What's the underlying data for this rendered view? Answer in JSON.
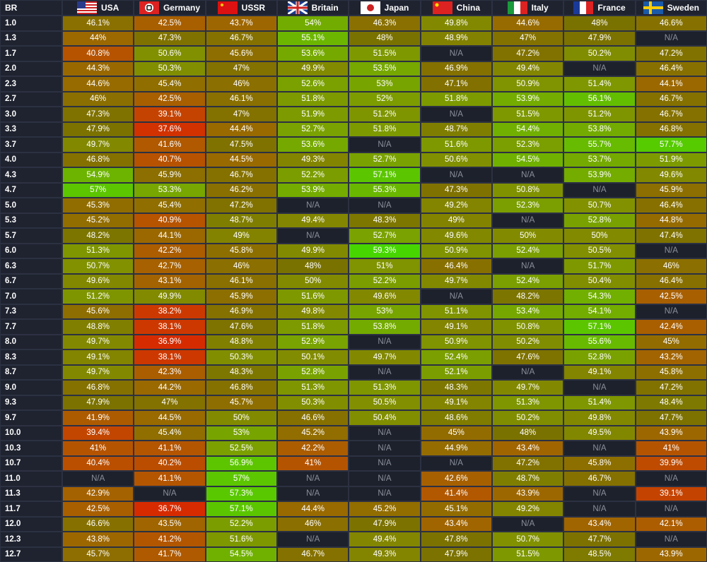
{
  "table": {
    "header": [
      "BR",
      "USA",
      "Germany",
      "USSR",
      "Britain",
      "Japan",
      "China",
      "Italy",
      "France",
      "Sweden"
    ],
    "rows": [
      [
        "1.0",
        "46.1%",
        "42.5%",
        "43.7%",
        "54%",
        "46.3%",
        "49.8%",
        "44.6%",
        "48%",
        "46.6%"
      ],
      [
        "1.3",
        "44%",
        "47.3%",
        "46.7%",
        "55.1%",
        "48%",
        "48.9%",
        "47%",
        "47.9%",
        "N/A"
      ],
      [
        "1.7",
        "40.8%",
        "50.6%",
        "45.6%",
        "53.6%",
        "51.5%",
        "N/A",
        "47.2%",
        "50.2%",
        "47.2%"
      ],
      [
        "2.0",
        "44.3%",
        "50.3%",
        "47%",
        "49.9%",
        "53.5%",
        "46.9%",
        "49.4%",
        "N/A",
        "46.4%"
      ],
      [
        "2.3",
        "44.6%",
        "45.4%",
        "46%",
        "52.6%",
        "53%",
        "47.1%",
        "50.9%",
        "51.4%",
        "44.1%"
      ],
      [
        "2.7",
        "46%",
        "42.5%",
        "46.1%",
        "51.8%",
        "52%",
        "51.8%",
        "53.9%",
        "56.1%",
        "46.7%"
      ],
      [
        "3.0",
        "47.3%",
        "39.1%",
        "47%",
        "51.9%",
        "51.2%",
        "N/A",
        "51.5%",
        "51.2%",
        "46.7%"
      ],
      [
        "3.3",
        "47.9%",
        "37.6%",
        "44.4%",
        "52.7%",
        "51.8%",
        "48.7%",
        "54.4%",
        "53.8%",
        "46.8%"
      ],
      [
        "3.7",
        "49.7%",
        "41.6%",
        "47.5%",
        "53.6%",
        "N/A",
        "51.6%",
        "52.3%",
        "55.7%",
        "57.7%"
      ],
      [
        "4.0",
        "46.8%",
        "40.7%",
        "44.5%",
        "49.3%",
        "52.7%",
        "50.6%",
        "54.5%",
        "53.7%",
        "51.9%"
      ],
      [
        "4.3",
        "54.9%",
        "45.9%",
        "46.7%",
        "52.2%",
        "57.1%",
        "N/A",
        "N/A",
        "53.9%",
        "49.6%"
      ],
      [
        "4.7",
        "57%",
        "53.3%",
        "46.2%",
        "53.9%",
        "55.3%",
        "47.3%",
        "50.8%",
        "N/A",
        "45.9%"
      ],
      [
        "5.0",
        "45.3%",
        "45.4%",
        "47.2%",
        "N/A",
        "N/A",
        "49.2%",
        "52.3%",
        "50.7%",
        "46.4%"
      ],
      [
        "5.3",
        "45.2%",
        "40.9%",
        "48.7%",
        "49.4%",
        "48.3%",
        "49%",
        "N/A",
        "52.8%",
        "44.8%"
      ],
      [
        "5.7",
        "48.2%",
        "44.1%",
        "49%",
        "N/A",
        "52.7%",
        "49.6%",
        "50%",
        "50%",
        "47.4%"
      ],
      [
        "6.0",
        "51.3%",
        "42.2%",
        "45.8%",
        "49.9%",
        "59.3%",
        "50.9%",
        "52.4%",
        "50.5%",
        "N/A"
      ],
      [
        "6.3",
        "50.7%",
        "42.7%",
        "46%",
        "48%",
        "51%",
        "46.4%",
        "N/A",
        "51.7%",
        "46%"
      ],
      [
        "6.7",
        "49.6%",
        "43.1%",
        "46.1%",
        "50%",
        "52.2%",
        "49.7%",
        "52.4%",
        "50.4%",
        "46.4%"
      ],
      [
        "7.0",
        "51.2%",
        "49.9%",
        "45.9%",
        "51.6%",
        "49.6%",
        "N/A",
        "48.2%",
        "54.3%",
        "42.5%"
      ],
      [
        "7.3",
        "45.6%",
        "38.2%",
        "46.9%",
        "49.8%",
        "53%",
        "51.1%",
        "53.4%",
        "54.1%",
        "N/A"
      ],
      [
        "7.7",
        "48.8%",
        "38.1%",
        "47.6%",
        "51.8%",
        "53.8%",
        "49.1%",
        "50.8%",
        "57.1%",
        "42.4%"
      ],
      [
        "8.0",
        "49.7%",
        "36.9%",
        "48.8%",
        "52.9%",
        "N/A",
        "50.9%",
        "50.2%",
        "55.6%",
        "45%"
      ],
      [
        "8.3",
        "49.1%",
        "38.1%",
        "50.3%",
        "50.1%",
        "49.7%",
        "52.4%",
        "47.6%",
        "52.8%",
        "43.2%"
      ],
      [
        "8.7",
        "49.7%",
        "42.3%",
        "48.3%",
        "52.8%",
        "N/A",
        "52.1%",
        "N/A",
        "49.1%",
        "45.8%"
      ],
      [
        "9.0",
        "46.8%",
        "44.2%",
        "46.8%",
        "51.3%",
        "51.3%",
        "48.3%",
        "49.7%",
        "N/A",
        "47.2%"
      ],
      [
        "9.3",
        "47.9%",
        "47%",
        "45.7%",
        "50.3%",
        "50.5%",
        "49.1%",
        "51.3%",
        "51.4%",
        "48.4%"
      ],
      [
        "9.7",
        "41.9%",
        "44.5%",
        "50%",
        "46.6%",
        "50.4%",
        "48.6%",
        "50.2%",
        "49.8%",
        "47.7%"
      ],
      [
        "10.0",
        "39.4%",
        "45.4%",
        "53%",
        "45.2%",
        "N/A",
        "45%",
        "48%",
        "49.5%",
        "43.9%"
      ],
      [
        "10.3",
        "41%",
        "41.1%",
        "52.5%",
        "42.2%",
        "N/A",
        "44.9%",
        "43.4%",
        "N/A",
        "41%"
      ],
      [
        "10.7",
        "40.4%",
        "40.2%",
        "56.9%",
        "41%",
        "N/A",
        "N/A",
        "47.2%",
        "45.8%",
        "39.9%"
      ],
      [
        "11.0",
        "N/A",
        "41.1%",
        "57%",
        "N/A",
        "N/A",
        "42.6%",
        "48.7%",
        "46.7%",
        "N/A"
      ],
      [
        "11.3",
        "42.9%",
        "N/A",
        "57.3%",
        "N/A",
        "N/A",
        "41.4%",
        "43.9%",
        "N/A",
        "39.1%"
      ],
      [
        "11.7",
        "42.5%",
        "36.7%",
        "57.1%",
        "44.4%",
        "45.2%",
        "45.1%",
        "49.2%",
        "N/A",
        "N/A"
      ],
      [
        "12.0",
        "46.6%",
        "43.5%",
        "52.2%",
        "46%",
        "47.9%",
        "43.4%",
        "N/A",
        "43.4%",
        "42.1%"
      ],
      [
        "12.3",
        "43.8%",
        "41.2%",
        "51.6%",
        "N/A",
        "49.4%",
        "47.8%",
        "50.7%",
        "47.7%",
        "N/A"
      ],
      [
        "12.7",
        "45.7%",
        "41.7%",
        "54.5%",
        "46.7%",
        "49.3%",
        "47.9%",
        "51.5%",
        "48.5%",
        "43.9%"
      ]
    ]
  }
}
